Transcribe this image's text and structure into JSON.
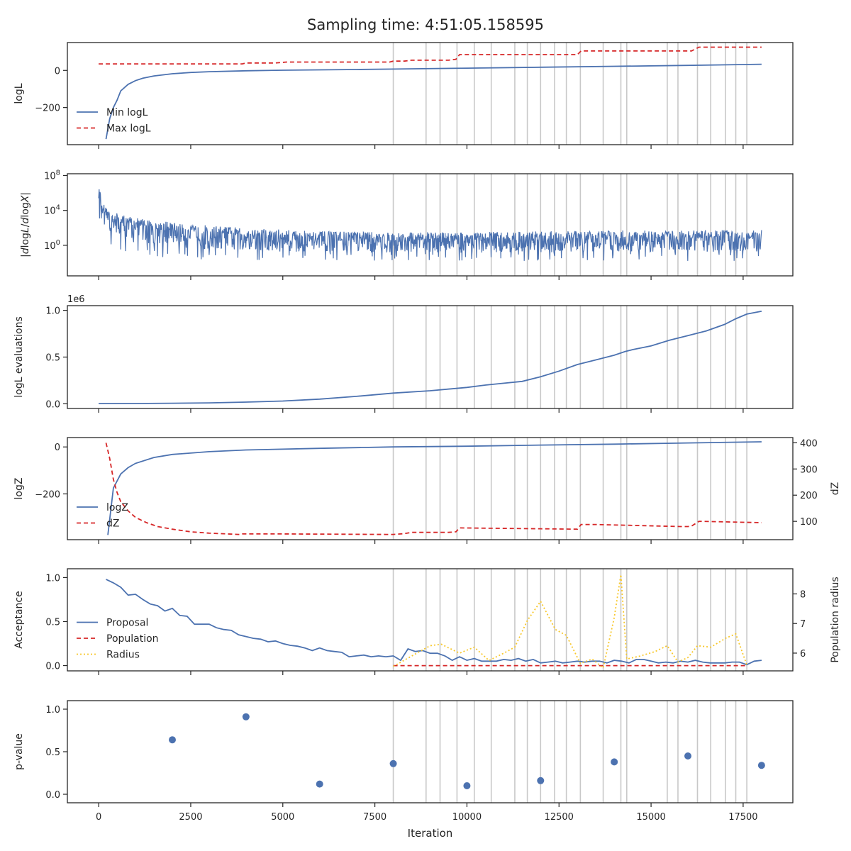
{
  "figure": {
    "suptitle": "Sampling time: 4:51:05.158595",
    "xlabel": "Iteration",
    "xticks": [
      "0",
      "2500",
      "5000",
      "7500",
      "10000",
      "12500",
      "15000",
      "17500"
    ]
  },
  "colors": {
    "blue": "#4C72B0",
    "red": "#D62728",
    "yellow": "#F8C82C",
    "grey": "#C8C8C8",
    "axis": "#262626"
  },
  "vlines": [
    8000,
    8890,
    9270,
    9730,
    10200,
    10660,
    11300,
    11640,
    12000,
    12380,
    12700,
    13080,
    13700,
    14180,
    14340,
    15440,
    15730,
    16260,
    16620,
    17020,
    17300,
    17600
  ],
  "chart_data": [
    {
      "id": "logL",
      "type": "line",
      "ylabel": "logL",
      "ylim": [
        -400,
        150
      ],
      "yticks": [
        {
          "v": 0,
          "label": "0"
        },
        {
          "v": -200,
          "label": "−200"
        }
      ],
      "legend": {
        "placement": "lower-left",
        "entries": [
          "Min logL",
          "Max logL"
        ]
      },
      "series": [
        {
          "name": "Min logL",
          "style": "solid",
          "color": "blue",
          "x": [
            200,
            300,
            400,
            500,
            600,
            800,
            1000,
            1200,
            1500,
            2000,
            2500,
            3000,
            4000,
            5000,
            6000,
            7000,
            8000,
            10000,
            12000,
            14000,
            16000,
            18000
          ],
          "y": [
            -370,
            -260,
            -200,
            -160,
            -110,
            -75,
            -55,
            -42,
            -30,
            -18,
            -11,
            -7,
            -2,
            1,
            3,
            5,
            7,
            12,
            17,
            22,
            27,
            33
          ]
        },
        {
          "name": "Max logL",
          "style": "dashed",
          "color": "red",
          "x": [
            0,
            3900,
            4000,
            4800,
            5100,
            7900,
            8000,
            8300,
            8500,
            9500,
            9700,
            9800,
            13000,
            13100,
            13500,
            16100,
            16300,
            16400,
            18000
          ],
          "y": [
            35,
            35,
            40,
            40,
            45,
            45,
            50,
            50,
            55,
            55,
            60,
            85,
            85,
            105,
            105,
            105,
            125,
            125,
            125
          ]
        }
      ]
    },
    {
      "id": "dlogL",
      "type": "line",
      "ylabel": "|dlogL/dlogX|",
      "yscale": "log",
      "ylim": [
        -3.5,
        8.2
      ],
      "yticks": [
        {
          "v": 8,
          "label": "10",
          "exp": "8"
        },
        {
          "v": 4,
          "label": "10",
          "exp": "4"
        },
        {
          "v": 0,
          "label": "10",
          "exp": "0"
        }
      ],
      "series": [
        {
          "name": "",
          "style": "noisy",
          "color": "blue",
          "x": [
            0,
            50,
            100,
            200,
            400,
            700,
            1000,
            1500,
            2000,
            3000,
            4000,
            5000,
            6000,
            8000,
            10000,
            12000,
            14000,
            16000,
            17500,
            18000
          ],
          "upper_log10": [
            7.7,
            6.0,
            5.0,
            4.3,
            3.8,
            3.4,
            3.2,
            2.9,
            2.6,
            2.3,
            2.0,
            1.8,
            1.6,
            1.5,
            1.5,
            1.6,
            1.7,
            1.7,
            1.8,
            1.8
          ],
          "lower_log10": [
            4.0,
            2.0,
            0.5,
            0.0,
            -0.5,
            -1.0,
            -1.2,
            -1.4,
            -1.6,
            -1.7,
            -1.8,
            -1.8,
            -1.8,
            -1.8,
            -1.8,
            -1.8,
            -1.8,
            -1.8,
            -1.8,
            -1.8
          ]
        }
      ]
    },
    {
      "id": "evals",
      "type": "line",
      "ylabel": "logL evaluations",
      "offset": "1e6",
      "ylim": [
        -0.05,
        1.05
      ],
      "yticks": [
        {
          "v": 0,
          "label": "0.0"
        },
        {
          "v": 0.5,
          "label": "0.5"
        },
        {
          "v": 1.0,
          "label": "1.0"
        }
      ],
      "series": [
        {
          "name": "",
          "style": "solid",
          "color": "blue",
          "x": [
            0,
            1000,
            2000,
            3000,
            4000,
            5000,
            6000,
            7000,
            8000,
            9000,
            10000,
            10500,
            11000,
            11500,
            12000,
            12500,
            13000,
            13500,
            14000,
            14300,
            14500,
            15000,
            15500,
            16000,
            16500,
            17000,
            17300,
            17600,
            18000
          ],
          "y": [
            0.002,
            0.003,
            0.006,
            0.01,
            0.018,
            0.03,
            0.05,
            0.08,
            0.115,
            0.14,
            0.175,
            0.2,
            0.22,
            0.24,
            0.29,
            0.35,
            0.42,
            0.47,
            0.52,
            0.56,
            0.58,
            0.62,
            0.68,
            0.73,
            0.78,
            0.85,
            0.91,
            0.96,
            0.99
          ]
        }
      ]
    },
    {
      "id": "logZ",
      "type": "line",
      "ylabel": "logZ",
      "ylim": [
        -395,
        40
      ],
      "yticks": [
        {
          "v": 0,
          "label": "0"
        },
        {
          "v": -200,
          "label": "−200"
        }
      ],
      "y2label": "dZ",
      "y2lim": [
        30,
        420
      ],
      "y2ticks": [
        {
          "v": 100,
          "label": "100"
        },
        {
          "v": 200,
          "label": "200"
        },
        {
          "v": 300,
          "label": "300"
        },
        {
          "v": 400,
          "label": "400"
        }
      ],
      "legend": {
        "placement": "lower-left",
        "entries": [
          "logZ",
          "dZ"
        ]
      },
      "series": [
        {
          "name": "logZ",
          "axis": "left",
          "style": "solid",
          "color": "blue",
          "x": [
            250,
            400,
            600,
            800,
            1000,
            1500,
            2000,
            3000,
            4000,
            6000,
            8000,
            10000,
            12000,
            14000,
            16000,
            18000
          ],
          "y": [
            -375,
            -175,
            -115,
            -88,
            -70,
            -45,
            -32,
            -20,
            -13,
            -6,
            0,
            3,
            8,
            12,
            17,
            22
          ]
        },
        {
          "name": "dZ",
          "axis": "right",
          "style": "dashed",
          "color": "red",
          "x": [
            200,
            300,
            400,
            500,
            600,
            800,
            1000,
            1300,
            1600,
            2000,
            2500,
            3000,
            3800,
            3900,
            4000,
            5000,
            7800,
            7900,
            8000,
            8300,
            8500,
            9500,
            9700,
            9800,
            13000,
            13100,
            13500,
            15800,
            16000,
            16100,
            16300,
            16400,
            18000
          ],
          "y": [
            400,
            340,
            260,
            210,
            175,
            140,
            115,
            95,
            80,
            70,
            60,
            55,
            50,
            52,
            52,
            52,
            50,
            50,
            50,
            53,
            58,
            58,
            60,
            75,
            70,
            88,
            88,
            80,
            80,
            82,
            100,
            100,
            95
          ]
        }
      ]
    },
    {
      "id": "acceptance",
      "type": "line",
      "ylabel": "Acceptance",
      "ylim": [
        -0.06,
        1.1
      ],
      "yticks": [
        {
          "v": 0,
          "label": "0.0"
        },
        {
          "v": 0.5,
          "label": "0.5"
        },
        {
          "v": 1.0,
          "label": "1.0"
        }
      ],
      "y2label": "Population radius",
      "y2lim": [
        5.4,
        8.85
      ],
      "y2ticks": [
        {
          "v": 6,
          "label": "6"
        },
        {
          "v": 7,
          "label": "7"
        },
        {
          "v": 8,
          "label": "8"
        }
      ],
      "legend": {
        "placement": "lower-left",
        "entries": [
          "Proposal",
          "Population",
          "Radius"
        ]
      },
      "series": [
        {
          "name": "Proposal",
          "axis": "left",
          "style": "solid",
          "color": "blue",
          "x": [
            200,
            400,
            600,
            800,
            1000,
            1200,
            1400,
            1600,
            1800,
            2000,
            2200,
            2400,
            2600,
            2800,
            3000,
            3200,
            3400,
            3600,
            3800,
            4000,
            4200,
            4400,
            4600,
            4800,
            5000,
            5200,
            5400,
            5600,
            5800,
            6000,
            6200,
            6400,
            6600,
            6800,
            7000,
            7200,
            7400,
            7600,
            7800,
            8000,
            8200,
            8400,
            8600,
            8800,
            9000,
            9200,
            9400,
            9600,
            9800,
            10000,
            10200,
            10400,
            10600,
            10800,
            11000,
            11200,
            11400,
            11600,
            11800,
            12000,
            12200,
            12400,
            12600,
            12800,
            13000,
            13200,
            13400,
            13600,
            13800,
            14000,
            14200,
            14400,
            14600,
            14800,
            15000,
            15200,
            15400,
            15600,
            15800,
            16000,
            16200,
            16400,
            16600,
            16800,
            17000,
            17200,
            17400,
            17600,
            17800,
            18000
          ],
          "y": [
            0.98,
            0.94,
            0.89,
            0.8,
            0.81,
            0.75,
            0.7,
            0.68,
            0.62,
            0.65,
            0.57,
            0.56,
            0.47,
            0.47,
            0.47,
            0.43,
            0.41,
            0.4,
            0.35,
            0.33,
            0.31,
            0.3,
            0.27,
            0.28,
            0.25,
            0.23,
            0.22,
            0.2,
            0.17,
            0.2,
            0.17,
            0.16,
            0.15,
            0.1,
            0.11,
            0.12,
            0.1,
            0.11,
            0.1,
            0.11,
            0.06,
            0.19,
            0.16,
            0.17,
            0.14,
            0.14,
            0.11,
            0.06,
            0.1,
            0.06,
            0.08,
            0.05,
            0.05,
            0.05,
            0.07,
            0.06,
            0.08,
            0.05,
            0.07,
            0.03,
            0.04,
            0.05,
            0.03,
            0.04,
            0.05,
            0.04,
            0.05,
            0.05,
            0.03,
            0.06,
            0.05,
            0.03,
            0.07,
            0.07,
            0.05,
            0.03,
            0.04,
            0.03,
            0.05,
            0.04,
            0.06,
            0.04,
            0.03,
            0.03,
            0.03,
            0.04,
            0.04,
            0.01,
            0.05,
            0.06
          ]
        },
        {
          "name": "Population",
          "axis": "left",
          "style": "dashed",
          "color": "red",
          "x": [
            8000,
            17600
          ],
          "y": [
            0.0,
            0.0
          ]
        },
        {
          "name": "Radius",
          "axis": "right",
          "style": "dotted",
          "color": "yellow",
          "x": [
            8000,
            8500,
            9000,
            9300,
            9800,
            10200,
            10600,
            11000,
            11300,
            11640,
            12000,
            12400,
            12700,
            13080,
            13400,
            13700,
            14000,
            14180,
            14340,
            14700,
            15100,
            15440,
            15730,
            16000,
            16260,
            16620,
            17020,
            17300,
            17600
          ],
          "y": [
            5.55,
            5.9,
            6.25,
            6.3,
            6.0,
            6.2,
            5.75,
            6.0,
            6.2,
            7.1,
            7.75,
            6.8,
            6.6,
            5.65,
            5.8,
            5.5,
            7.2,
            8.65,
            5.8,
            5.9,
            6.05,
            6.25,
            5.7,
            5.85,
            6.25,
            6.2,
            6.5,
            6.65,
            5.6
          ]
        }
      ]
    },
    {
      "id": "pvalue",
      "type": "scatter",
      "ylabel": "p-value",
      "ylim": [
        -0.1,
        1.1
      ],
      "yticks": [
        {
          "v": 0,
          "label": "0.0"
        },
        {
          "v": 0.5,
          "label": "0.5"
        },
        {
          "v": 1.0,
          "label": "1.0"
        }
      ],
      "series": [
        {
          "name": "",
          "style": "points",
          "color": "blue",
          "x": [
            2000,
            4000,
            6000,
            8000,
            10000,
            12000,
            14000,
            16000,
            18000
          ],
          "y": [
            0.64,
            0.91,
            0.12,
            0.36,
            0.1,
            0.16,
            0.38,
            0.45,
            0.34
          ]
        }
      ]
    }
  ]
}
